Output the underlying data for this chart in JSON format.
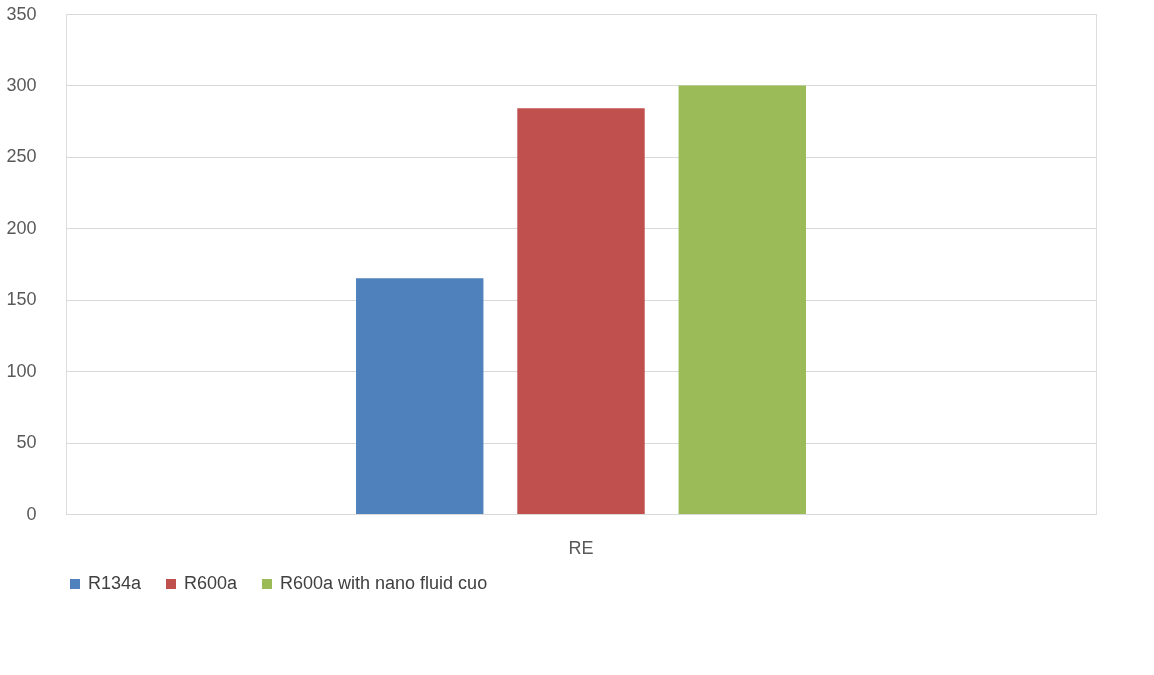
{
  "chart_data": {
    "type": "bar",
    "categories": [
      "RE"
    ],
    "series": [
      {
        "name": "R134a",
        "color": "#4f81bd",
        "values": [
          165
        ]
      },
      {
        "name": "R600a",
        "color": "#c0504d",
        "values": [
          284
        ]
      },
      {
        "name": "R600a with nano fluid cuo",
        "color": "#9bbb59",
        "values": [
          300
        ]
      }
    ],
    "ylim": [
      0,
      350
    ],
    "yticks": [
      0,
      50,
      100,
      150,
      200,
      250,
      300,
      350
    ],
    "grid": "y",
    "legend": "bottom"
  }
}
